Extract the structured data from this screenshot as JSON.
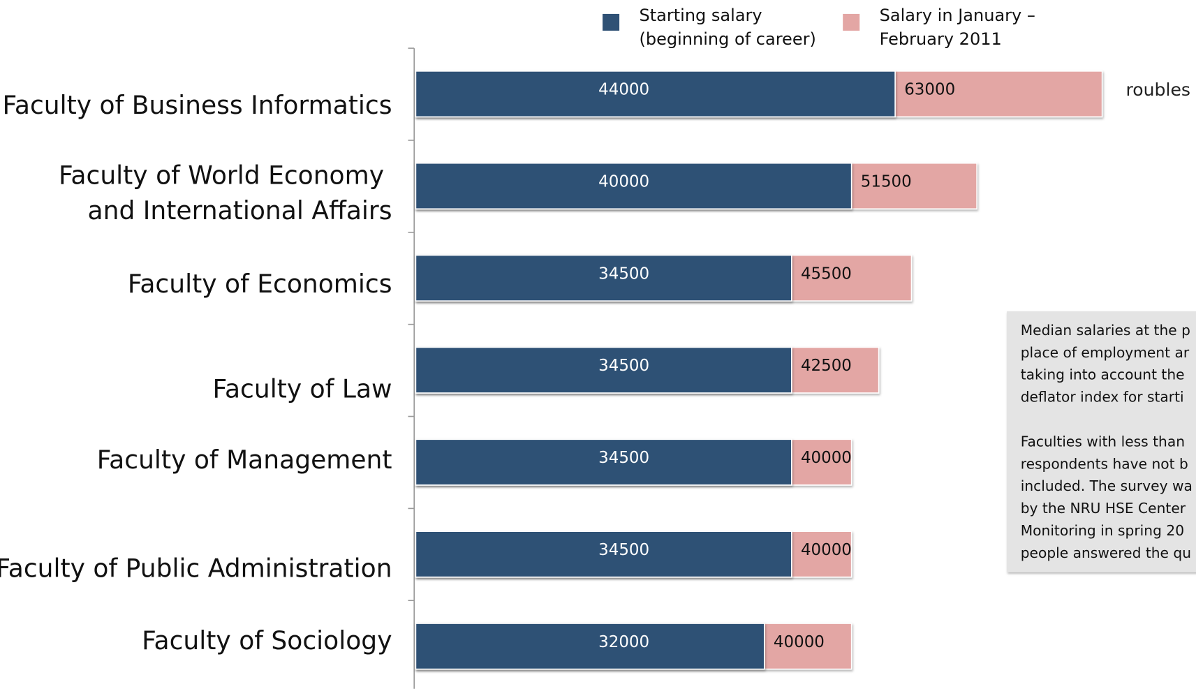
{
  "chart_data": {
    "type": "bar",
    "orientation": "horizontal",
    "categories": [
      "Faculty of Business Informatics",
      "Faculty of World Economy and International Affairs",
      "Faculty of Economics",
      "Faculty of Law",
      "Faculty of Management",
      "Faculty of Public Administration",
      "Faculty of Sociology"
    ],
    "series": [
      {
        "name": "Starting salary (beginning of career)",
        "color": "#2f5175",
        "values": [
          44000,
          40000,
          34500,
          34500,
          34500,
          34500,
          32000
        ]
      },
      {
        "name": "Salary in January – February 2011",
        "color": "#e3a6a4",
        "values": [
          63000,
          51500,
          45500,
          42500,
          40000,
          40000,
          40000
        ]
      }
    ],
    "unit_label": "roubles",
    "note": {
      "paragraphs": [
        [
          "Median salaries at the p",
          "place of employment ar",
          "taking into account the",
          "deflator index for starti"
        ],
        [
          "Faculties with less than",
          "respondents have not b",
          "included. The survey wa",
          "by the NRU HSE Center",
          "Monitoring in spring 20",
          "people answered the qu"
        ]
      ]
    }
  }
}
